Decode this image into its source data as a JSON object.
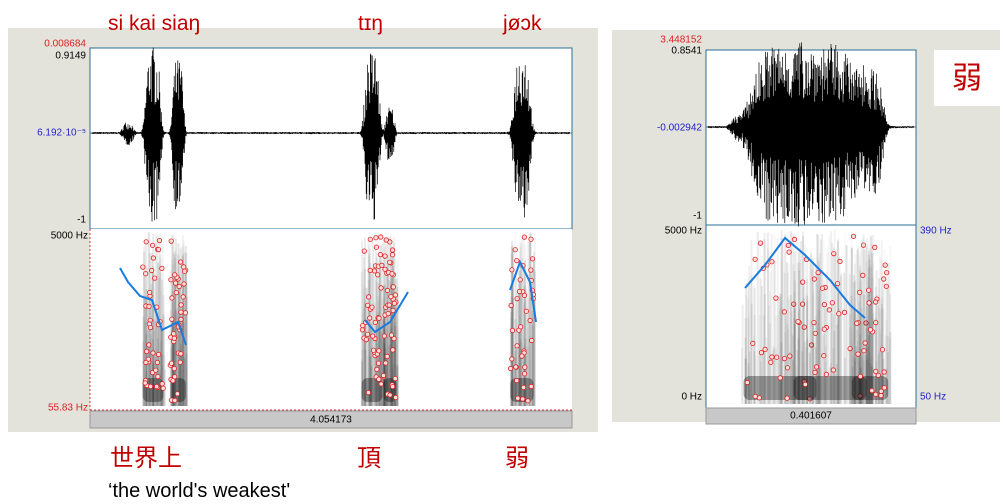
{
  "left_panel": {
    "syllables": [
      "si kai siaŋ",
      "tɪŋ",
      "jøɔk"
    ],
    "waveform_labels": {
      "top": "0.008684",
      "max": "0.9149",
      "mid": "6.192·10⁻⁵",
      "min": "-1"
    },
    "spectrogram_labels": {
      "top": "5000 Hz",
      "bottom": "55.83 Hz"
    },
    "duration": "4.054173",
    "characters": [
      "世界上",
      "頂",
      "弱"
    ],
    "gloss": "‘the world's weakest'"
  },
  "right_panel": {
    "waveform_labels": {
      "top": "3.448152",
      "max": "0.8541",
      "mid": "-0.002942",
      "min": "-1"
    },
    "spectrogram_labels": {
      "top": "5000 Hz",
      "bottom": "0 Hz"
    },
    "pitch_labels": {
      "top": "390 Hz",
      "bottom": "50 Hz"
    },
    "duration": "0.401607",
    "character": "弱"
  }
}
